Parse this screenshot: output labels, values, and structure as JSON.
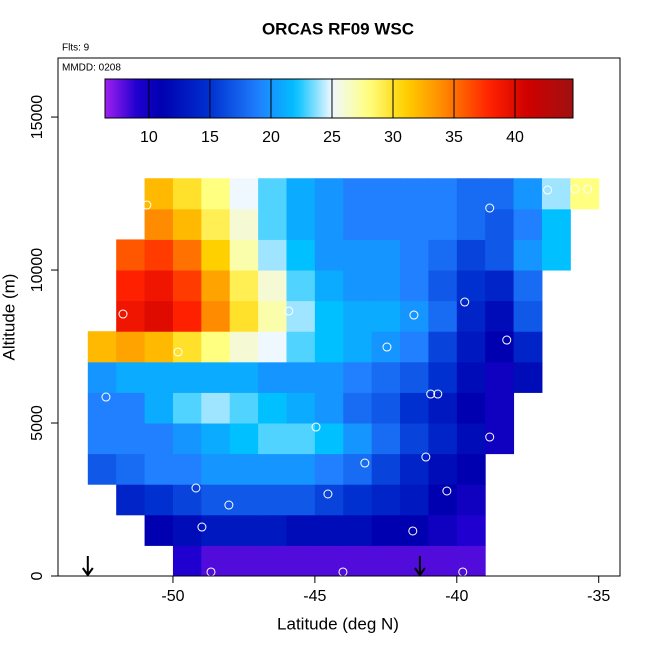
{
  "chart_data": {
    "type": "heatmap",
    "title": "ORCAS RF09 WSC",
    "annotations": [
      "Flts: 9",
      "MMDD: 0208"
    ],
    "xlabel": "Latitude (deg N)",
    "ylabel": "Altitude (m)",
    "xlim": [
      -54.05,
      -34.25
    ],
    "ylim": [
      0,
      16930
    ],
    "xticks": [
      -50,
      -45,
      -40,
      -35
    ],
    "yticks": [
      0,
      5000,
      10000,
      15000
    ],
    "zlim": [
      6.4,
      44.75
    ],
    "zticks": [
      10,
      15,
      20,
      25,
      30,
      35,
      40
    ],
    "colormap": [
      [
        6.4,
        "#a020f0"
      ],
      [
        9,
        "#2000d0"
      ],
      [
        11,
        "#0000b0"
      ],
      [
        15,
        "#0030d0"
      ],
      [
        19,
        "#2080ff"
      ],
      [
        22,
        "#00c0ff"
      ],
      [
        25,
        "#f0f8ff"
      ],
      [
        28,
        "#ffff80"
      ],
      [
        31,
        "#ffd000"
      ],
      [
        34,
        "#ff8c00"
      ],
      [
        38,
        "#ff2000"
      ],
      [
        41,
        "#d00000"
      ],
      [
        44.75,
        "#a01010"
      ]
    ],
    "lats": [
      -52.5,
      -51.5,
      -50.5,
      -49.5,
      -48.5,
      -47.5,
      -46.5,
      -45.5,
      -44.5,
      -43.5,
      -42.5,
      -41.5,
      -40.5,
      -39.5,
      -38.5,
      -37.5,
      -36.5,
      -35.5
    ],
    "alts": [
      500,
      1500,
      2500,
      3500,
      4500,
      5500,
      6500,
      7500,
      8500,
      9500,
      10500,
      11500,
      12500
    ],
    "z": [
      [
        null,
        null,
        null,
        9,
        8,
        8,
        8,
        8,
        8,
        8,
        8,
        8,
        8,
        8,
        null,
        null,
        null,
        null
      ],
      [
        null,
        null,
        11,
        12,
        13,
        13,
        13,
        12,
        12,
        12,
        11,
        11,
        10,
        9,
        null,
        null,
        null,
        null
      ],
      [
        null,
        14,
        15,
        16,
        17,
        17,
        17,
        17,
        16,
        15,
        14,
        13,
        11,
        10,
        null,
        null,
        null,
        null
      ],
      [
        17,
        18,
        19,
        19,
        20,
        20,
        20,
        20,
        19,
        18,
        16,
        14,
        12,
        11,
        null,
        null,
        null,
        null
      ],
      [
        19,
        19,
        19,
        20,
        21,
        22,
        23,
        23,
        22,
        20,
        18,
        16,
        14,
        12,
        10,
        null,
        null,
        null
      ],
      [
        19,
        19,
        21,
        23,
        24,
        23,
        22,
        21,
        20,
        18,
        17,
        15,
        13,
        11,
        10,
        null,
        null,
        null
      ],
      [
        20,
        21,
        21,
        21,
        21,
        21,
        20,
        20,
        20,
        19,
        18,
        17,
        15,
        12,
        10,
        12,
        null,
        null
      ],
      [
        32,
        33,
        32,
        30,
        28,
        26,
        25,
        23,
        22,
        21,
        20,
        19,
        16,
        13,
        11,
        14,
        null,
        null
      ],
      [
        null,
        39,
        40,
        38,
        34,
        30,
        27,
        24,
        22,
        21,
        21,
        20,
        18,
        14,
        12,
        17,
        null,
        null
      ],
      [
        null,
        38,
        39,
        37,
        33,
        29,
        26,
        23,
        21,
        20,
        20,
        19,
        17,
        15,
        14,
        18,
        null,
        null
      ],
      [
        null,
        36,
        37,
        35,
        31,
        27,
        24,
        22,
        20,
        20,
        20,
        19,
        18,
        16,
        17,
        20,
        22,
        null
      ],
      [
        null,
        null,
        34,
        32,
        29,
        26,
        23,
        21,
        20,
        19,
        19,
        19,
        19,
        18,
        17,
        19,
        22,
        null
      ],
      [
        null,
        null,
        32,
        30,
        28,
        25,
        23,
        21,
        20,
        19,
        19,
        19,
        19,
        18,
        18,
        20,
        24,
        28
      ]
    ],
    "points": {
      "x": [
        -50.92,
        -38.84,
        -36.8,
        -35.84,
        -35.39,
        -51.76,
        -45.92,
        -49.82,
        -41.51,
        -42.46,
        -39.72,
        -38.24,
        -52.36,
        -40.92,
        -40.67,
        -44.96,
        -38.84,
        -43.24,
        -41.09,
        -49.19,
        -44.54,
        -40.35,
        -48.03,
        -48.98,
        -41.55,
        -48.66,
        -44.01,
        -39.79
      ],
      "y": [
        12124,
        12026,
        12614,
        12647,
        12647,
        8562,
        8660,
        7320,
        8529,
        7484,
        8954,
        7712,
        5850,
        5948,
        5948,
        4869,
        4542,
        3693,
        3889,
        2876,
        2680,
        2778,
        2320,
        1601,
        1471,
        131,
        131,
        131
      ]
    },
    "arrows_lat": [
      -53,
      -41.3
    ]
  }
}
